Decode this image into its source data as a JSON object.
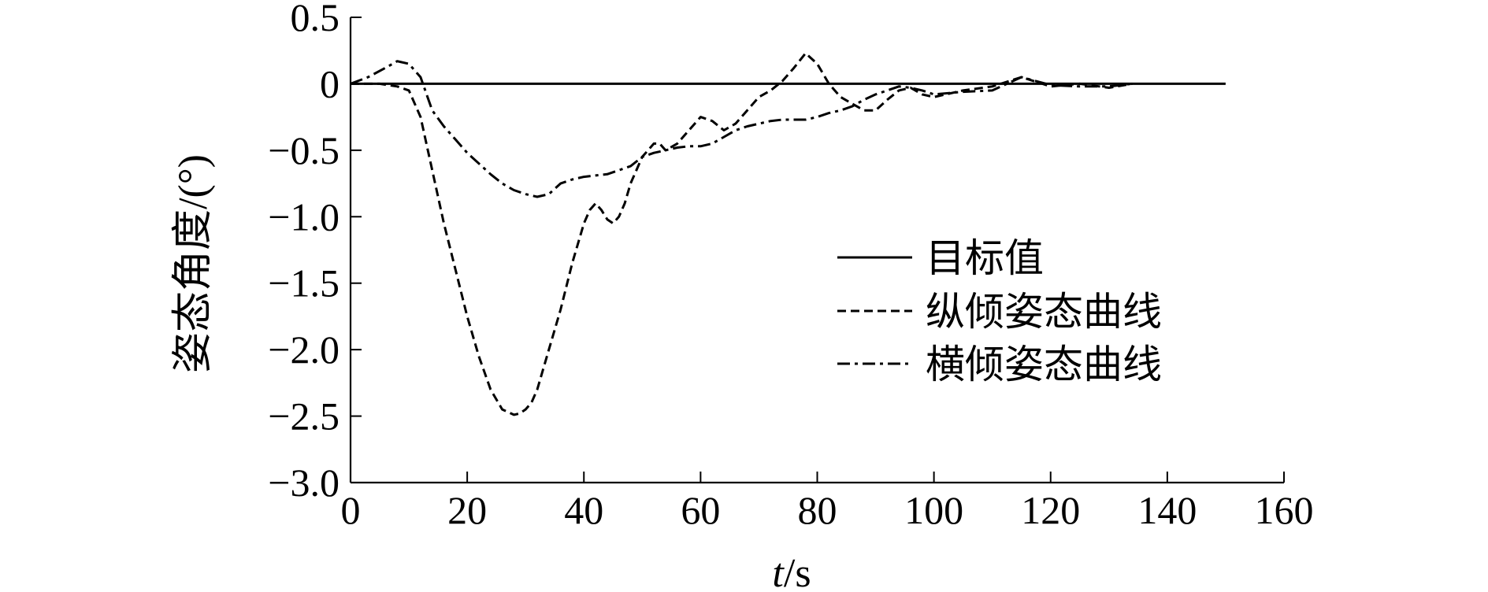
{
  "chart_data": {
    "type": "line",
    "xlabel_italic": "t",
    "xlabel_unit": "/s",
    "ylabel": "姿态角度/(°)",
    "xlim": [
      0,
      160
    ],
    "ylim": [
      -3.0,
      0.5
    ],
    "x_ticks": [
      0,
      20,
      40,
      60,
      80,
      100,
      120,
      140,
      160
    ],
    "x_tick_labels": [
      "0",
      "20",
      "40",
      "60",
      "80",
      "100",
      "120",
      "140",
      "160"
    ],
    "y_ticks": [
      0.5,
      0,
      -0.5,
      -1.0,
      -1.5,
      -2.0,
      -2.5,
      -3.0
    ],
    "y_tick_labels": [
      "0.5",
      "0",
      "−0.5",
      "−1.0",
      "−1.5",
      "−2.0",
      "−2.5",
      "−3.0"
    ],
    "grid": false,
    "legend_position": "center-right",
    "series": [
      {
        "name": "目标值",
        "style": "solid",
        "x": [
          0,
          150
        ],
        "y": [
          0,
          0
        ]
      },
      {
        "name": "纵倾姿态曲线",
        "style": "dashed",
        "x": [
          0,
          5,
          8,
          10,
          12,
          14,
          16,
          18,
          20,
          22,
          24,
          26,
          28,
          29,
          30,
          31,
          32,
          34,
          36,
          38,
          40,
          41,
          42,
          43,
          44,
          45,
          46,
          47,
          48,
          50,
          52,
          53,
          54,
          56,
          58,
          60,
          62,
          64,
          66,
          68,
          70,
          72,
          74,
          76,
          78,
          80,
          82,
          84,
          86,
          88,
          90,
          92,
          94,
          96,
          98,
          100,
          105,
          110,
          115,
          120,
          125,
          130,
          134
        ],
        "y": [
          0,
          0,
          -0.02,
          -0.05,
          -0.25,
          -0.65,
          -1.05,
          -1.4,
          -1.75,
          -2.05,
          -2.3,
          -2.45,
          -2.49,
          -2.48,
          -2.45,
          -2.4,
          -2.3,
          -2.0,
          -1.7,
          -1.35,
          -1.05,
          -0.95,
          -0.9,
          -0.95,
          -1.02,
          -1.05,
          -1.0,
          -0.9,
          -0.75,
          -0.55,
          -0.45,
          -0.45,
          -0.5,
          -0.45,
          -0.35,
          -0.25,
          -0.28,
          -0.35,
          -0.3,
          -0.2,
          -0.1,
          -0.05,
          0.02,
          0.12,
          0.23,
          0.15,
          0.0,
          -0.1,
          -0.15,
          -0.2,
          -0.2,
          -0.12,
          -0.05,
          -0.03,
          -0.08,
          -0.1,
          -0.05,
          -0.02,
          0.05,
          -0.02,
          0.0,
          -0.03,
          0.0
        ]
      },
      {
        "name": "横倾姿态曲线",
        "style": "dashdot",
        "x": [
          0,
          3,
          6,
          8,
          10,
          12,
          14,
          16,
          18,
          20,
          22,
          24,
          26,
          28,
          30,
          32,
          34,
          36,
          38,
          40,
          42,
          44,
          46,
          48,
          50,
          52,
          54,
          56,
          58,
          60,
          62,
          64,
          66,
          68,
          70,
          72,
          74,
          76,
          78,
          80,
          82,
          84,
          86,
          88,
          90,
          92,
          94,
          96,
          98,
          100,
          105,
          110,
          115,
          120,
          125,
          130,
          134
        ],
        "y": [
          0,
          0.05,
          0.12,
          0.17,
          0.15,
          0.05,
          -0.2,
          -0.32,
          -0.42,
          -0.52,
          -0.6,
          -0.68,
          -0.75,
          -0.8,
          -0.83,
          -0.85,
          -0.83,
          -0.75,
          -0.72,
          -0.7,
          -0.69,
          -0.68,
          -0.65,
          -0.62,
          -0.55,
          -0.52,
          -0.5,
          -0.48,
          -0.47,
          -0.47,
          -0.45,
          -0.4,
          -0.35,
          -0.32,
          -0.3,
          -0.28,
          -0.27,
          -0.27,
          -0.27,
          -0.25,
          -0.22,
          -0.2,
          -0.17,
          -0.12,
          -0.08,
          -0.05,
          -0.02,
          -0.03,
          -0.05,
          -0.08,
          -0.06,
          -0.05,
          0.05,
          -0.01,
          -0.02,
          -0.02,
          0.0
        ]
      }
    ]
  }
}
